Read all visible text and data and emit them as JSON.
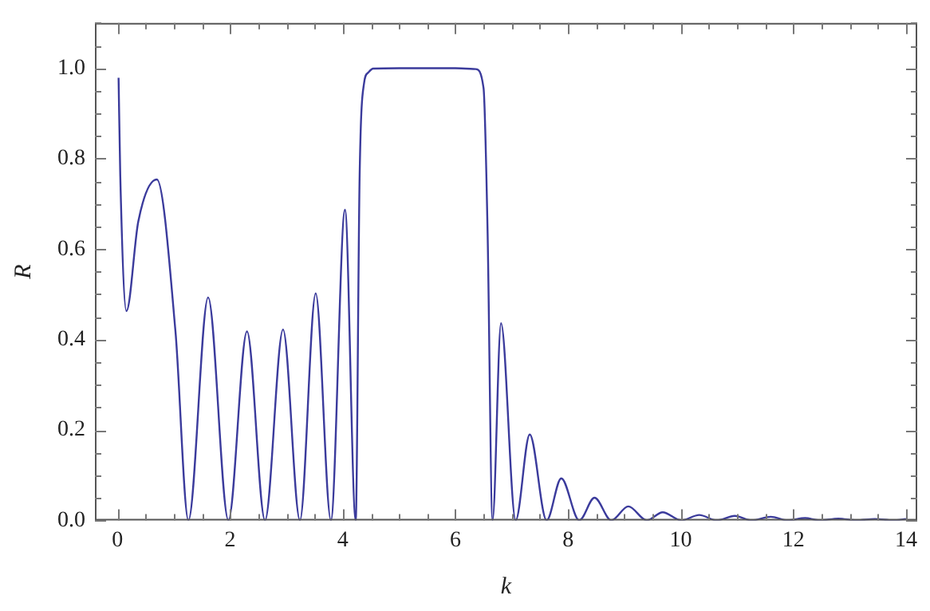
{
  "chart_data": {
    "type": "line",
    "xlabel": "k",
    "ylabel": "R",
    "xlim": [
      -0.4,
      14.2
    ],
    "ylim": [
      0,
      1.1
    ],
    "xticks": [
      0,
      {
        "value": 0.5,
        "label": null
      },
      2,
      {
        "value": 1,
        "label": null
      },
      {
        "value": 1.5,
        "label": null
      },
      {
        "value": 2.5,
        "label": null
      },
      {
        "value": 3,
        "label": null
      },
      {
        "value": 3.5,
        "label": null
      },
      4,
      {
        "value": 4.5,
        "label": null
      },
      {
        "value": 5,
        "label": null
      },
      {
        "value": 5.5,
        "label": null
      },
      6,
      {
        "value": 6.5,
        "label": null
      },
      {
        "value": 7,
        "label": null
      },
      {
        "value": 7.5,
        "label": null
      },
      8,
      {
        "value": 8.5,
        "label": null
      },
      {
        "value": 9,
        "label": null
      },
      {
        "value": 9.5,
        "label": null
      },
      10,
      {
        "value": 10.5,
        "label": null
      },
      {
        "value": 11,
        "label": null
      },
      {
        "value": 11.5,
        "label": null
      },
      12,
      {
        "value": 12.5,
        "label": null
      },
      {
        "value": 13,
        "label": null
      },
      {
        "value": 13.5,
        "label": null
      },
      14
    ],
    "yticks": [
      {
        "value": 0,
        "label": "0.0"
      },
      {
        "value": 0.05,
        "label": null
      },
      {
        "value": 0.1,
        "label": null
      },
      {
        "value": 0.15,
        "label": null
      },
      {
        "value": 0.2,
        "label": "0.2"
      },
      {
        "value": 0.25,
        "label": null
      },
      {
        "value": 0.3,
        "label": null
      },
      {
        "value": 0.35,
        "label": null
      },
      {
        "value": 0.4,
        "label": "0.4"
      },
      {
        "value": 0.45,
        "label": null
      },
      {
        "value": 0.5,
        "label": null
      },
      {
        "value": 0.55,
        "label": null
      },
      {
        "value": 0.6,
        "label": "0.6"
      },
      {
        "value": 0.65,
        "label": null
      },
      {
        "value": 0.7,
        "label": null
      },
      {
        "value": 0.75,
        "label": null
      },
      {
        "value": 0.8,
        "label": "0.8"
      },
      {
        "value": 0.85,
        "label": null
      },
      {
        "value": 0.9,
        "label": null
      },
      {
        "value": 0.95,
        "label": null
      },
      {
        "value": 1,
        "label": "1.0"
      },
      {
        "value": 1.05,
        "label": null
      },
      {
        "value": 1.1,
        "label": null
      }
    ],
    "grid": false,
    "legend": false,
    "marker": "none",
    "line_style": "solid",
    "series": [
      {
        "color": "#3b3b9c",
        "x": [
          0.02,
          0.05,
          0.16,
          0.37,
          0.7,
          1.03,
          1.26,
          1.61,
          1.97,
          2.3,
          2.62,
          2.94,
          3.24,
          3.52,
          3.79,
          4.04,
          4.23,
          4.3,
          4.38,
          4.45,
          4.54,
          5.0,
          6.0,
          6.36,
          6.5,
          6.57,
          6.66,
          6.81,
          7.07,
          7.32,
          7.62,
          7.88,
          8.2,
          8.47,
          8.77,
          9.07,
          9.4,
          9.68,
          10.01,
          10.33,
          10.64,
          10.96,
          11.26,
          11.6,
          11.9,
          12.21,
          12.47,
          12.8,
          13.12,
          13.45,
          13.77,
          14.0
        ],
        "values": [
          0.979,
          0.763,
          0.463,
          0.661,
          0.754,
          0.418,
          0,
          0.493,
          0,
          0.418,
          0,
          0.422,
          0,
          0.502,
          0,
          0.687,
          0,
          0.763,
          0.968,
          0.99,
          0.999,
          1.0,
          1.0,
          0.998,
          0.956,
          0.65,
          0,
          0.436,
          0,
          0.19,
          0,
          0.093,
          0,
          0.05,
          0,
          0.031,
          0,
          0.018,
          0,
          0.012,
          0,
          0.01,
          0,
          0.008,
          0,
          0.005,
          0,
          0.004,
          0,
          0.003,
          0,
          0.003
        ]
      }
    ]
  }
}
